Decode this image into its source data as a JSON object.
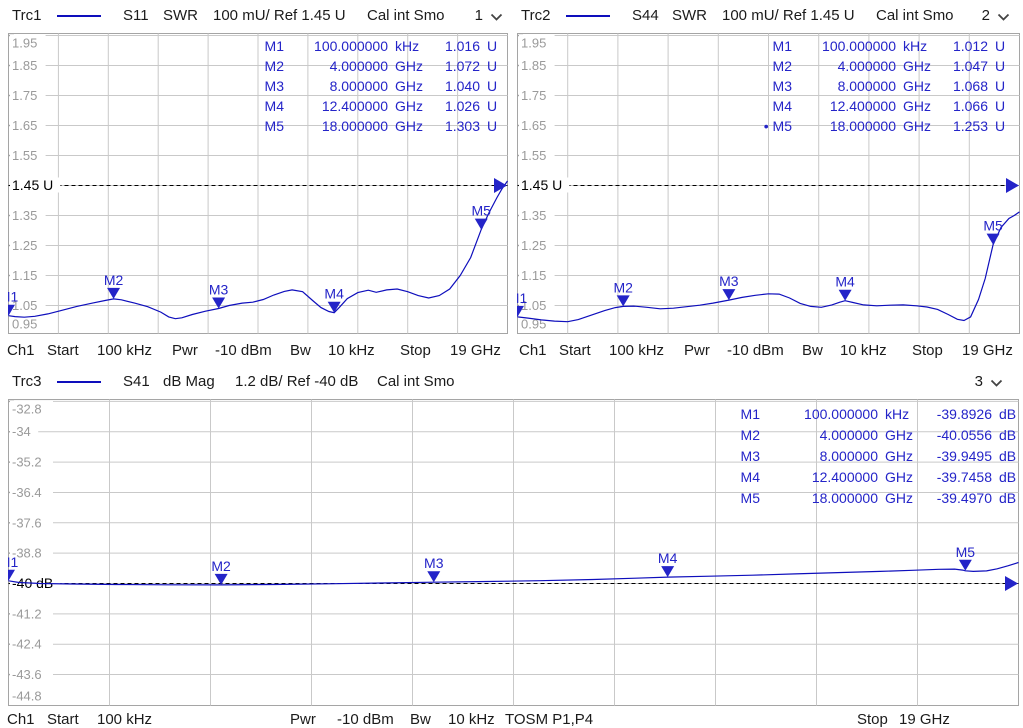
{
  "panels": [
    {
      "header": {
        "trace": "Trc1",
        "measurement": "S11",
        "format": "SWR",
        "scale": "100 mU/ Ref 1.45 U",
        "calibration": "Cal int Smo",
        "channel": "1"
      },
      "footer": {
        "channel": "Ch1",
        "start_label": "Start",
        "start_value": "100 kHz",
        "power_label": "Pwr",
        "power_value": "-10 dBm",
        "bandwidth_label": "Bw",
        "bandwidth_value": "10 kHz",
        "stop_label": "Stop",
        "stop_value": "19 GHz"
      }
    },
    {
      "header": {
        "trace": "Trc2",
        "measurement": "S44",
        "format": "SWR",
        "scale": "100 mU/ Ref 1.45 U",
        "calibration": "Cal int Smo",
        "channel": "2"
      },
      "footer": {
        "channel": "Ch1",
        "start_label": "Start",
        "start_value": "100 kHz",
        "power_label": "Pwr",
        "power_value": "-10 dBm",
        "bandwidth_label": "Bw",
        "bandwidth_value": "10 kHz",
        "stop_label": "Stop",
        "stop_value": "19 GHz"
      }
    },
    {
      "header": {
        "trace": "Trc3",
        "measurement": "S41",
        "format": "dB Mag",
        "scale": "1.2 dB/ Ref -40 dB",
        "calibration": "Cal int Smo",
        "channel": "3"
      },
      "footer": {
        "channel": "Ch1",
        "start_label": "Start",
        "start_value": "100 kHz",
        "power_label": "Pwr",
        "power_value": "-10 dBm",
        "bandwidth_label": "Bw",
        "bandwidth_value": "10 kHz",
        "tosm": "TOSM P1,P4",
        "stop_label": "Stop",
        "stop_value": "19 GHz"
      }
    }
  ],
  "colors": {
    "trace_blue": "#0e0ebc",
    "marker_blue": "#2424c8",
    "grid": "#c9c9c9",
    "border": "#a5a5a5",
    "axis_gray": "#9a9a9a",
    "ref_black": "#000000"
  },
  "chart_data": [
    {
      "type": "line",
      "title": "Trc1 S11 SWR",
      "x_unit": "GHz",
      "x_range": [
        0.0001,
        19
      ],
      "y_unit": "U",
      "ref": {
        "value": 1.45,
        "label": "1.45 U"
      },
      "y_ticks": [
        {
          "v": 1.95,
          "label": "1.95"
        },
        {
          "v": 1.85,
          "label": "1.85"
        },
        {
          "v": 1.75,
          "label": "1.75"
        },
        {
          "v": 1.65,
          "label": "1.65"
        },
        {
          "v": 1.55,
          "label": "1.55"
        },
        {
          "v": 1.45,
          "label": "1.45 U",
          "ref": true
        },
        {
          "v": 1.35,
          "label": "1.35"
        },
        {
          "v": 1.25,
          "label": "1.25"
        },
        {
          "v": 1.15,
          "label": "1.15"
        },
        {
          "v": 1.05,
          "label": "1.05"
        },
        {
          "v": 0.95,
          "label": "0.95"
        }
      ],
      "markers": [
        {
          "name": "M1",
          "freq_ghz": 0.0001,
          "freq_text": "100.000000",
          "freq_unit": "kHz",
          "value": 1.016,
          "value_text": "1.016",
          "value_unit": "U",
          "active": false
        },
        {
          "name": "M2",
          "freq_ghz": 4,
          "freq_text": "4.000000",
          "freq_unit": "GHz",
          "value": 1.072,
          "value_text": "1.072",
          "value_unit": "U",
          "active": false
        },
        {
          "name": "M3",
          "freq_ghz": 8,
          "freq_text": "8.000000",
          "freq_unit": "GHz",
          "value": 1.04,
          "value_text": "1.040",
          "value_unit": "U",
          "active": false
        },
        {
          "name": "M4",
          "freq_ghz": 12.4,
          "freq_text": "12.400000",
          "freq_unit": "GHz",
          "value": 1.026,
          "value_text": "1.026",
          "value_unit": "U",
          "active": false
        },
        {
          "name": "M5",
          "freq_ghz": 18,
          "freq_text": "18.000000",
          "freq_unit": "GHz",
          "value": 1.303,
          "value_text": "1.303",
          "value_unit": "U",
          "active": false
        }
      ],
      "points": [
        [
          0.0001,
          1.016
        ],
        [
          0.25,
          1.013
        ],
        [
          0.6,
          1.011
        ],
        [
          1.0,
          1.014
        ],
        [
          1.5,
          1.022
        ],
        [
          2.0,
          1.033
        ],
        [
          2.6,
          1.047
        ],
        [
          3.2,
          1.058
        ],
        [
          3.7,
          1.067
        ],
        [
          4.0,
          1.072
        ],
        [
          4.3,
          1.069
        ],
        [
          4.8,
          1.058
        ],
        [
          5.3,
          1.046
        ],
        [
          5.8,
          1.028
        ],
        [
          6.1,
          1.012
        ],
        [
          6.35,
          1.006
        ],
        [
          6.6,
          1.009
        ],
        [
          7.0,
          1.02
        ],
        [
          7.5,
          1.031
        ],
        [
          8.0,
          1.04
        ],
        [
          8.4,
          1.05
        ],
        [
          8.9,
          1.058
        ],
        [
          9.3,
          1.061
        ],
        [
          9.7,
          1.07
        ],
        [
          10.1,
          1.085
        ],
        [
          10.5,
          1.097
        ],
        [
          10.8,
          1.102
        ],
        [
          11.2,
          1.096
        ],
        [
          11.6,
          1.065
        ],
        [
          11.9,
          1.043
        ],
        [
          12.2,
          1.03
        ],
        [
          12.4,
          1.026
        ],
        [
          12.6,
          1.044
        ],
        [
          12.9,
          1.073
        ],
        [
          13.3,
          1.093
        ],
        [
          13.7,
          1.101
        ],
        [
          14.0,
          1.094
        ],
        [
          14.4,
          1.102
        ],
        [
          14.8,
          1.105
        ],
        [
          15.2,
          1.096
        ],
        [
          15.6,
          1.083
        ],
        [
          16.0,
          1.075
        ],
        [
          16.4,
          1.083
        ],
        [
          16.8,
          1.105
        ],
        [
          17.2,
          1.15
        ],
        [
          17.6,
          1.21
        ],
        [
          18.0,
          1.303
        ],
        [
          18.3,
          1.36
        ],
        [
          18.6,
          1.41
        ],
        [
          18.8,
          1.44
        ],
        [
          19.0,
          1.465
        ]
      ]
    },
    {
      "type": "line",
      "title": "Trc2 S44 SWR",
      "x_unit": "GHz",
      "x_range": [
        0.0001,
        19
      ],
      "y_unit": "U",
      "ref": {
        "value": 1.45,
        "label": "1.45 U"
      },
      "y_ticks": [
        {
          "v": 1.95,
          "label": "1.95"
        },
        {
          "v": 1.85,
          "label": "1.85"
        },
        {
          "v": 1.75,
          "label": "1.75"
        },
        {
          "v": 1.65,
          "label": "1.65"
        },
        {
          "v": 1.55,
          "label": "1.55"
        },
        {
          "v": 1.45,
          "label": "1.45 U",
          "ref": true
        },
        {
          "v": 1.35,
          "label": "1.35"
        },
        {
          "v": 1.25,
          "label": "1.25"
        },
        {
          "v": 1.15,
          "label": "1.15"
        },
        {
          "v": 1.05,
          "label": "1.05"
        },
        {
          "v": 0.95,
          "label": "0.95"
        }
      ],
      "markers": [
        {
          "name": "M1",
          "freq_ghz": 0.0001,
          "freq_text": "100.000000",
          "freq_unit": "kHz",
          "value": 1.012,
          "value_text": "1.012",
          "value_unit": "U",
          "active": false
        },
        {
          "name": "M2",
          "freq_ghz": 4,
          "freq_text": "4.000000",
          "freq_unit": "GHz",
          "value": 1.047,
          "value_text": "1.047",
          "value_unit": "U",
          "active": false
        },
        {
          "name": "M3",
          "freq_ghz": 8,
          "freq_text": "8.000000",
          "freq_unit": "GHz",
          "value": 1.068,
          "value_text": "1.068",
          "value_unit": "U",
          "active": false
        },
        {
          "name": "M4",
          "freq_ghz": 12.4,
          "freq_text": "12.400000",
          "freq_unit": "GHz",
          "value": 1.066,
          "value_text": "1.066",
          "value_unit": "U",
          "active": false
        },
        {
          "name": "M5",
          "freq_ghz": 18,
          "freq_text": "18.000000",
          "freq_unit": "GHz",
          "value": 1.253,
          "value_text": "1.253",
          "value_unit": "U",
          "active": true
        }
      ],
      "points": [
        [
          0.0001,
          1.012
        ],
        [
          0.4,
          1.008
        ],
        [
          0.9,
          1.002
        ],
        [
          1.4,
          0.998
        ],
        [
          1.9,
          0.996
        ],
        [
          2.3,
          1.003
        ],
        [
          2.8,
          1.018
        ],
        [
          3.3,
          1.033
        ],
        [
          3.7,
          1.043
        ],
        [
          4.0,
          1.047
        ],
        [
          4.4,
          1.048
        ],
        [
          4.9,
          1.044
        ],
        [
          5.4,
          1.039
        ],
        [
          5.9,
          1.041
        ],
        [
          6.4,
          1.046
        ],
        [
          6.9,
          1.051
        ],
        [
          7.4,
          1.058
        ],
        [
          8.0,
          1.068
        ],
        [
          8.5,
          1.077
        ],
        [
          9.0,
          1.084
        ],
        [
          9.5,
          1.089
        ],
        [
          9.9,
          1.088
        ],
        [
          10.3,
          1.075
        ],
        [
          10.7,
          1.057
        ],
        [
          11.1,
          1.047
        ],
        [
          11.5,
          1.044
        ],
        [
          11.9,
          1.052
        ],
        [
          12.2,
          1.061
        ],
        [
          12.4,
          1.066
        ],
        [
          12.7,
          1.06
        ],
        [
          13.1,
          1.052
        ],
        [
          13.6,
          1.049
        ],
        [
          14.1,
          1.051
        ],
        [
          14.6,
          1.052
        ],
        [
          15.1,
          1.049
        ],
        [
          15.5,
          1.045
        ],
        [
          15.9,
          1.037
        ],
        [
          16.3,
          1.02
        ],
        [
          16.65,
          1.004
        ],
        [
          16.9,
          1.0
        ],
        [
          17.15,
          1.012
        ],
        [
          17.45,
          1.07
        ],
        [
          17.7,
          1.14
        ],
        [
          18.0,
          1.253
        ],
        [
          18.3,
          1.31
        ],
        [
          18.6,
          1.34
        ],
        [
          18.8,
          1.35
        ],
        [
          19.0,
          1.362
        ]
      ]
    },
    {
      "type": "line",
      "title": "Trc3 S41 dB Mag",
      "x_unit": "GHz",
      "x_range": [
        0.0001,
        19
      ],
      "y_unit": "dB",
      "ref": {
        "value": -40,
        "label": "-40 dB"
      },
      "y_ticks": [
        {
          "v": -32.8,
          "label": "-32.8"
        },
        {
          "v": -34,
          "label": "-34"
        },
        {
          "v": -35.2,
          "label": "-35.2"
        },
        {
          "v": -36.4,
          "label": "-36.4"
        },
        {
          "v": -37.6,
          "label": "-37.6"
        },
        {
          "v": -38.8,
          "label": "-38.8"
        },
        {
          "v": -40,
          "label": "-40 dB",
          "ref": true
        },
        {
          "v": -41.2,
          "label": "-41.2"
        },
        {
          "v": -42.4,
          "label": "-42.4"
        },
        {
          "v": -43.6,
          "label": "-43.6"
        },
        {
          "v": -44.8,
          "label": "-44.8"
        }
      ],
      "markers": [
        {
          "name": "M1",
          "freq_ghz": 0.0001,
          "freq_text": "100.000000",
          "freq_unit": "kHz",
          "value": -39.8926,
          "value_text": "-39.8926",
          "value_unit": "dB",
          "active": false
        },
        {
          "name": "M2",
          "freq_ghz": 4,
          "freq_text": "4.000000",
          "freq_unit": "GHz",
          "value": -40.0556,
          "value_text": "-40.0556",
          "value_unit": "dB",
          "active": false
        },
        {
          "name": "M3",
          "freq_ghz": 8,
          "freq_text": "8.000000",
          "freq_unit": "GHz",
          "value": -39.9495,
          "value_text": "-39.9495",
          "value_unit": "dB",
          "active": false
        },
        {
          "name": "M4",
          "freq_ghz": 12.4,
          "freq_text": "12.400000",
          "freq_unit": "GHz",
          "value": -39.7458,
          "value_text": "-39.7458",
          "value_unit": "dB",
          "active": false
        },
        {
          "name": "M5",
          "freq_ghz": 18,
          "freq_text": "18.000000",
          "freq_unit": "GHz",
          "value": -39.497,
          "value_text": "-39.4970",
          "value_unit": "dB",
          "active": false
        }
      ],
      "points": [
        [
          0.0001,
          -39.893
        ],
        [
          0.2,
          -39.96
        ],
        [
          0.6,
          -40.0
        ],
        [
          1.2,
          -40.02
        ],
        [
          2.0,
          -40.04
        ],
        [
          3.0,
          -40.05
        ],
        [
          4.0,
          -40.056
        ],
        [
          5.0,
          -40.04
        ],
        [
          6.0,
          -40.01
        ],
        [
          7.0,
          -39.98
        ],
        [
          8.0,
          -39.95
        ],
        [
          9.0,
          -39.92
        ],
        [
          10.0,
          -39.89
        ],
        [
          11.0,
          -39.84
        ],
        [
          11.8,
          -39.79
        ],
        [
          12.4,
          -39.746
        ],
        [
          13.2,
          -39.71
        ],
        [
          14.0,
          -39.67
        ],
        [
          14.8,
          -39.62
        ],
        [
          15.6,
          -39.57
        ],
        [
          16.4,
          -39.52
        ],
        [
          17.0,
          -39.48
        ],
        [
          17.5,
          -39.44
        ],
        [
          17.8,
          -39.43
        ],
        [
          17.95,
          -39.47
        ],
        [
          18.0,
          -39.497
        ],
        [
          18.15,
          -39.52
        ],
        [
          18.4,
          -39.5
        ],
        [
          18.6,
          -39.42
        ],
        [
          18.8,
          -39.3
        ],
        [
          19.0,
          -39.17
        ]
      ]
    }
  ]
}
